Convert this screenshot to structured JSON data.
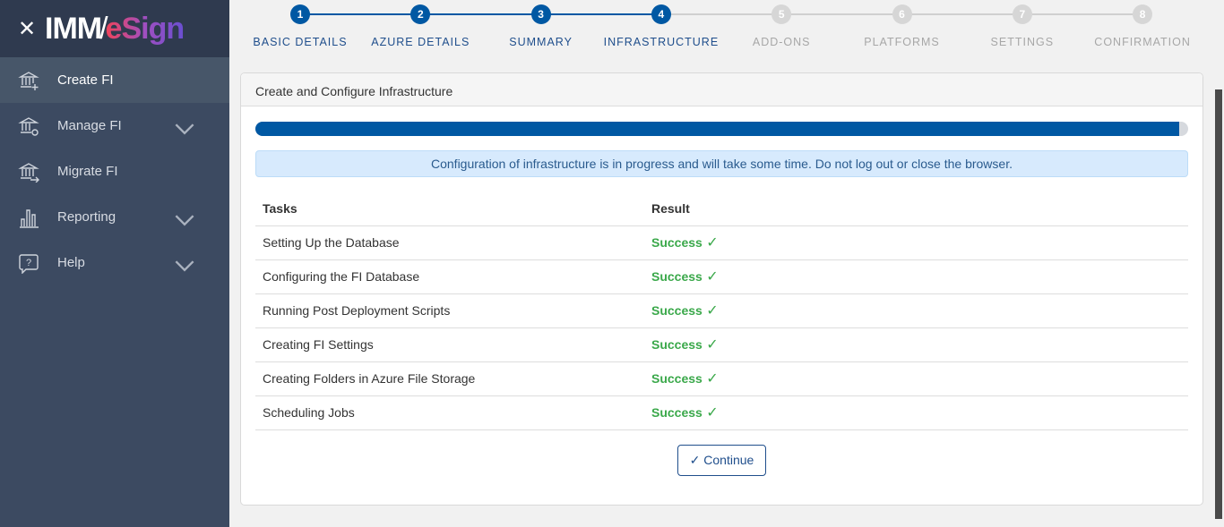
{
  "logo": {
    "part1": "IMM",
    "part2": "eSign"
  },
  "sidebar": {
    "items": [
      {
        "label": "Create FI",
        "icon": "bank-plus-icon",
        "active": true,
        "expandable": false
      },
      {
        "label": "Manage FI",
        "icon": "bank-gear-icon",
        "active": false,
        "expandable": true
      },
      {
        "label": "Migrate FI",
        "icon": "bank-arrow-icon",
        "active": false,
        "expandable": false
      },
      {
        "label": "Reporting",
        "icon": "bar-chart-icon",
        "active": false,
        "expandable": true
      },
      {
        "label": "Help",
        "icon": "help-bubble-icon",
        "active": false,
        "expandable": true
      }
    ]
  },
  "stepper": {
    "current": 4,
    "steps": [
      {
        "n": "1",
        "label": "BASIC DETAILS"
      },
      {
        "n": "2",
        "label": "AZURE DETAILS"
      },
      {
        "n": "3",
        "label": "SUMMARY"
      },
      {
        "n": "4",
        "label": "INFRASTRUCTURE"
      },
      {
        "n": "5",
        "label": "ADD-ONS"
      },
      {
        "n": "6",
        "label": "PLATFORMS"
      },
      {
        "n": "7",
        "label": "SETTINGS"
      },
      {
        "n": "8",
        "label": "CONFIRMATION"
      }
    ]
  },
  "card": {
    "title": "Create and Configure Infrastructure",
    "progress_percent": 99,
    "alert": "Configuration of infrastructure is in progress and will take some time. Do not log out or close the browser.",
    "headers": [
      "Tasks",
      "Result"
    ],
    "rows": [
      {
        "task": "Setting Up the Database",
        "result": "Success"
      },
      {
        "task": "Configuring the FI Database",
        "result": "Success"
      },
      {
        "task": "Running Post Deployment Scripts",
        "result": "Success"
      },
      {
        "task": "Creating FI Settings",
        "result": "Success"
      },
      {
        "task": "Creating Folders in Azure File Storage",
        "result": "Success"
      },
      {
        "task": "Scheduling Jobs",
        "result": "Success"
      }
    ],
    "continue_label": "Continue"
  },
  "colors": {
    "primary": "#0058a3",
    "success": "#3aa84a",
    "sidebar": "#3c4a61"
  }
}
